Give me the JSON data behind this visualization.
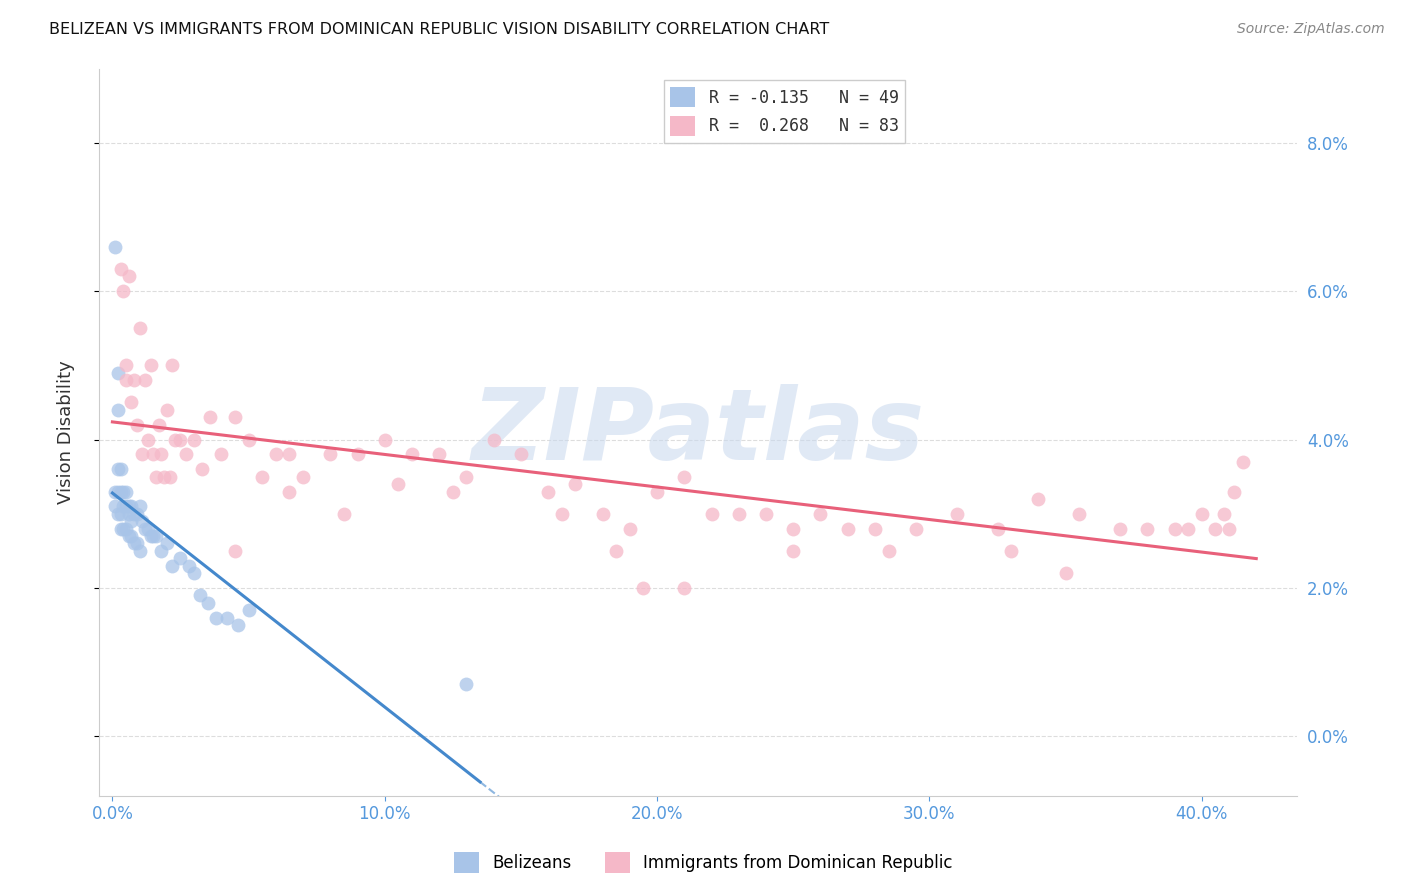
{
  "title": "BELIZEAN VS IMMIGRANTS FROM DOMINICAN REPUBLIC VISION DISABILITY CORRELATION CHART",
  "source": "Source: ZipAtlas.com",
  "ylabel": "Vision Disability",
  "ylabel_vals": [
    0.0,
    0.02,
    0.04,
    0.06,
    0.08
  ],
  "xlabel_vals": [
    0.0,
    0.1,
    0.2,
    0.3,
    0.4
  ],
  "xlim": [
    -0.005,
    0.435
  ],
  "ylim": [
    -0.008,
    0.09
  ],
  "belizean_color": "#a8c4e8",
  "dominican_color": "#f5b8c8",
  "belizean_line_color": "#4488cc",
  "dominican_line_color": "#e8607a",
  "tick_label_color": "#5599dd",
  "grid_color": "#dddddd",
  "background_color": "#ffffff",
  "watermark_text": "ZIPatlas",
  "watermark_color": "#c8d8ee",
  "legend_label_1": "R = -0.135   N = 49",
  "legend_label_2": "R =  0.268   N = 83",
  "bottom_label_1": "Belizeans",
  "bottom_label_2": "Immigrants from Dominican Republic",
  "belizean_x": [
    0.001,
    0.001,
    0.001,
    0.002,
    0.002,
    0.002,
    0.002,
    0.002,
    0.003,
    0.003,
    0.003,
    0.003,
    0.004,
    0.004,
    0.004,
    0.005,
    0.005,
    0.005,
    0.006,
    0.006,
    0.006,
    0.007,
    0.007,
    0.007,
    0.008,
    0.008,
    0.009,
    0.009,
    0.01,
    0.01,
    0.011,
    0.012,
    0.013,
    0.014,
    0.015,
    0.016,
    0.018,
    0.02,
    0.022,
    0.025,
    0.028,
    0.03,
    0.032,
    0.035,
    0.038,
    0.042,
    0.046,
    0.05,
    0.13
  ],
  "belizean_y": [
    0.066,
    0.033,
    0.031,
    0.049,
    0.044,
    0.036,
    0.033,
    0.03,
    0.036,
    0.033,
    0.03,
    0.028,
    0.033,
    0.031,
    0.028,
    0.033,
    0.031,
    0.028,
    0.031,
    0.03,
    0.027,
    0.031,
    0.029,
    0.027,
    0.03,
    0.026,
    0.03,
    0.026,
    0.031,
    0.025,
    0.029,
    0.028,
    0.028,
    0.027,
    0.027,
    0.027,
    0.025,
    0.026,
    0.023,
    0.024,
    0.023,
    0.022,
    0.019,
    0.018,
    0.016,
    0.016,
    0.015,
    0.017,
    0.007
  ],
  "dominican_x": [
    0.003,
    0.004,
    0.005,
    0.005,
    0.006,
    0.007,
    0.008,
    0.009,
    0.01,
    0.011,
    0.012,
    0.013,
    0.014,
    0.015,
    0.016,
    0.017,
    0.018,
    0.019,
    0.02,
    0.021,
    0.022,
    0.023,
    0.025,
    0.027,
    0.03,
    0.033,
    0.036,
    0.04,
    0.045,
    0.05,
    0.055,
    0.06,
    0.065,
    0.07,
    0.08,
    0.09,
    0.1,
    0.11,
    0.12,
    0.13,
    0.14,
    0.15,
    0.16,
    0.17,
    0.18,
    0.19,
    0.2,
    0.21,
    0.22,
    0.23,
    0.24,
    0.25,
    0.26,
    0.27,
    0.28,
    0.295,
    0.31,
    0.325,
    0.34,
    0.355,
    0.37,
    0.38,
    0.39,
    0.395,
    0.4,
    0.405,
    0.408,
    0.41,
    0.412,
    0.415,
    0.045,
    0.065,
    0.085,
    0.105,
    0.125,
    0.165,
    0.185,
    0.195,
    0.21,
    0.25,
    0.285,
    0.33,
    0.35
  ],
  "dominican_y": [
    0.063,
    0.06,
    0.05,
    0.048,
    0.062,
    0.045,
    0.048,
    0.042,
    0.055,
    0.038,
    0.048,
    0.04,
    0.05,
    0.038,
    0.035,
    0.042,
    0.038,
    0.035,
    0.044,
    0.035,
    0.05,
    0.04,
    0.04,
    0.038,
    0.04,
    0.036,
    0.043,
    0.038,
    0.043,
    0.04,
    0.035,
    0.038,
    0.038,
    0.035,
    0.038,
    0.038,
    0.04,
    0.038,
    0.038,
    0.035,
    0.04,
    0.038,
    0.033,
    0.034,
    0.03,
    0.028,
    0.033,
    0.035,
    0.03,
    0.03,
    0.03,
    0.028,
    0.03,
    0.028,
    0.028,
    0.028,
    0.03,
    0.028,
    0.032,
    0.03,
    0.028,
    0.028,
    0.028,
    0.028,
    0.03,
    0.028,
    0.03,
    0.028,
    0.033,
    0.037,
    0.025,
    0.033,
    0.03,
    0.034,
    0.033,
    0.03,
    0.025,
    0.02,
    0.02,
    0.025,
    0.025,
    0.025,
    0.022
  ]
}
